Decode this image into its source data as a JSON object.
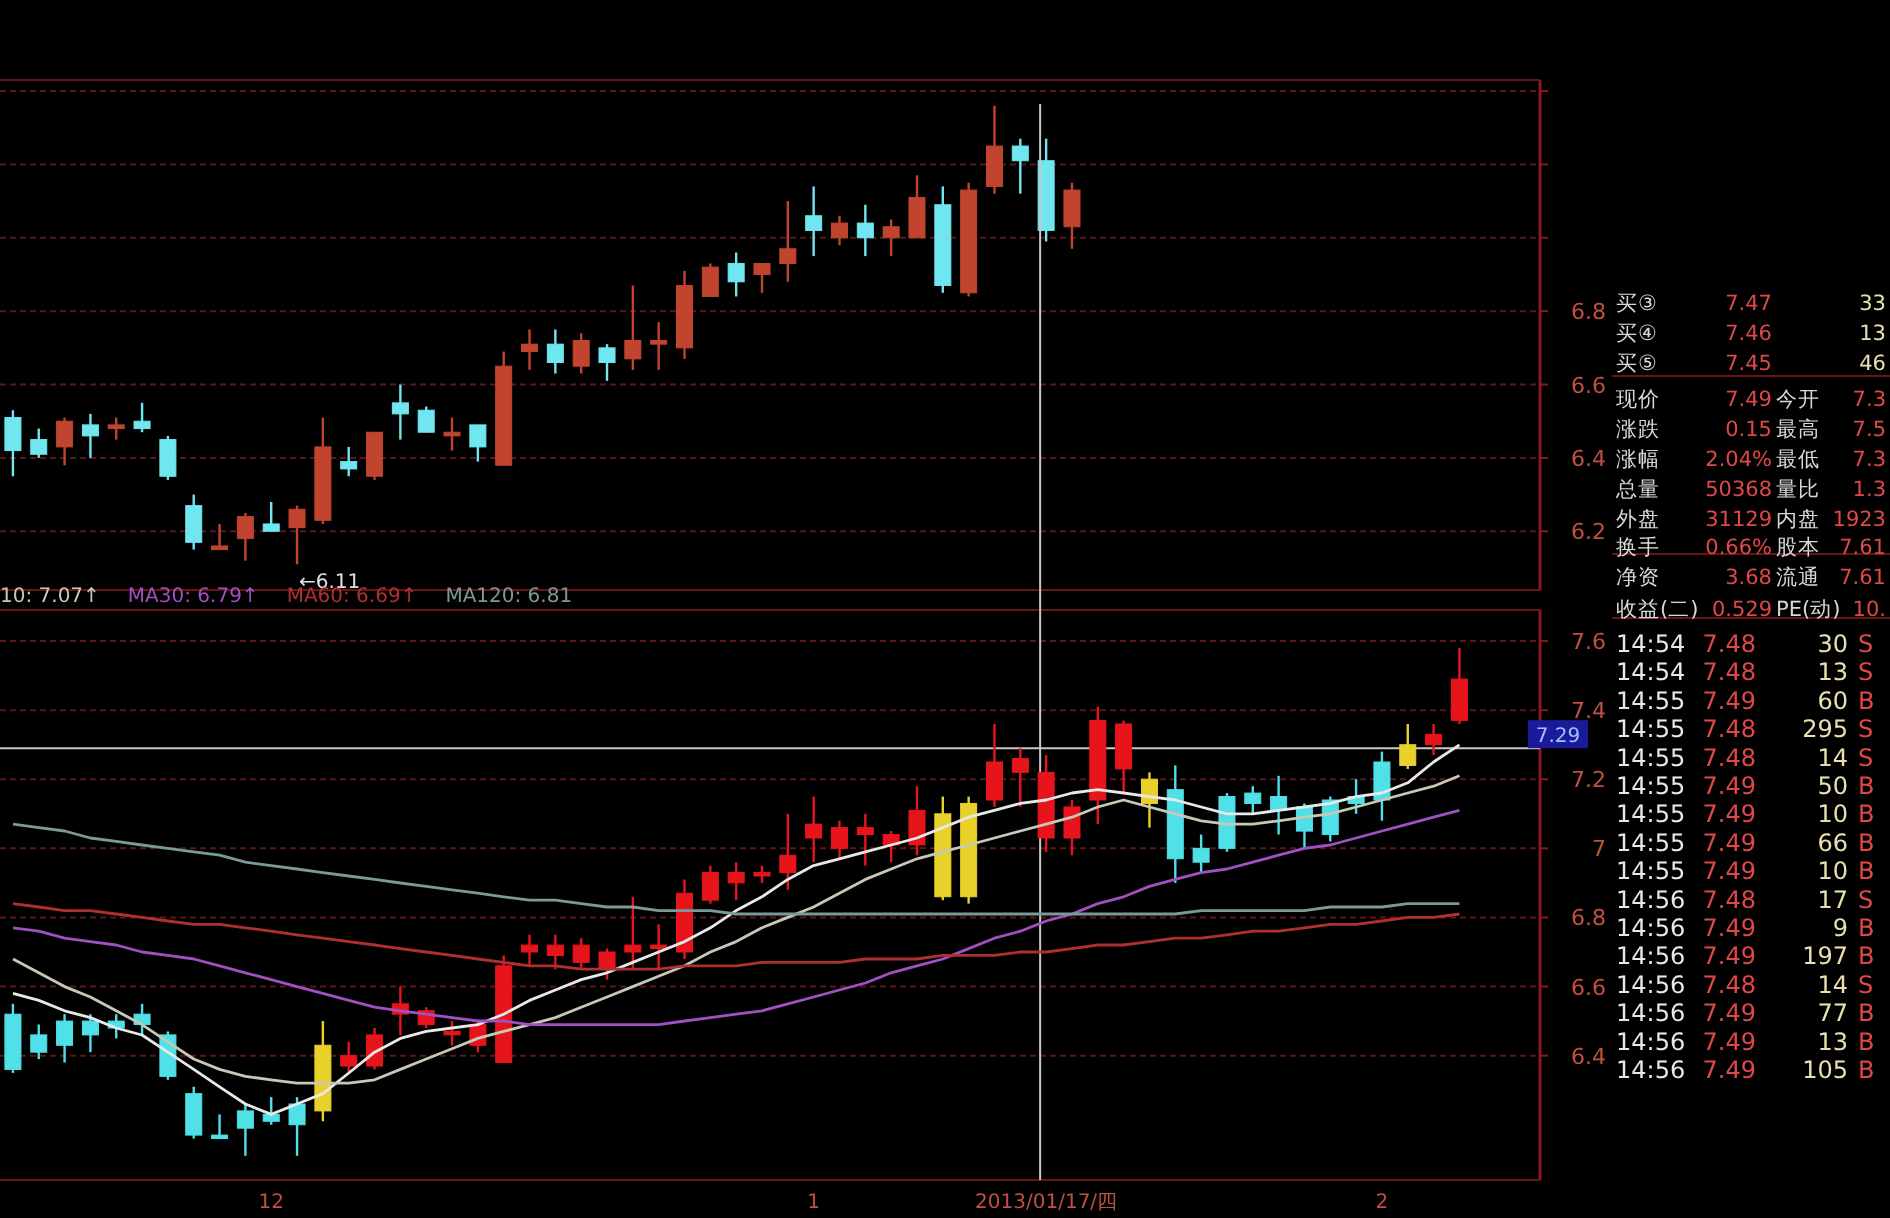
{
  "chart_data": [
    {
      "type": "candlestick",
      "categories": [
        null,
        null,
        null,
        null,
        null,
        null,
        null,
        null,
        null,
        null,
        null,
        null,
        null,
        null,
        null,
        null,
        null,
        null,
        null,
        null,
        null,
        null,
        null,
        null,
        null,
        null,
        null,
        null,
        null,
        null,
        null,
        null,
        null,
        null,
        null,
        null,
        null,
        null,
        null,
        null,
        null,
        null,
        null,
        null,
        null,
        null,
        null,
        null,
        null,
        null,
        null,
        null,
        null,
        null,
        null,
        null,
        null,
        null,
        null
      ],
      "ohlc": [
        [
          6.51,
          6.53,
          6.35,
          6.42
        ],
        [
          6.45,
          6.48,
          6.4,
          6.41
        ],
        [
          6.43,
          6.51,
          6.38,
          6.5
        ],
        [
          6.49,
          6.52,
          6.4,
          6.46
        ],
        [
          6.48,
          6.51,
          6.45,
          6.49
        ],
        [
          6.5,
          6.55,
          6.47,
          6.48
        ],
        [
          6.45,
          6.46,
          6.34,
          6.35
        ],
        [
          6.27,
          6.3,
          6.15,
          6.17
        ],
        [
          6.15,
          6.22,
          6.15,
          6.16
        ],
        [
          6.18,
          6.25,
          6.12,
          6.24
        ],
        [
          6.22,
          6.28,
          6.2,
          6.2
        ],
        [
          6.21,
          6.27,
          6.11,
          6.26
        ],
        [
          6.23,
          6.51,
          6.22,
          6.43
        ],
        [
          6.39,
          6.43,
          6.35,
          6.37
        ],
        [
          6.35,
          6.47,
          6.34,
          6.47
        ],
        [
          6.55,
          6.6,
          6.45,
          6.52
        ],
        [
          6.53,
          6.54,
          6.47,
          6.47
        ],
        [
          6.46,
          6.51,
          6.42,
          6.47
        ],
        [
          6.49,
          6.49,
          6.39,
          6.43
        ],
        [
          6.38,
          6.69,
          6.38,
          6.65
        ],
        [
          6.69,
          6.75,
          6.64,
          6.71
        ],
        [
          6.71,
          6.75,
          6.63,
          6.66
        ],
        [
          6.65,
          6.74,
          6.63,
          6.72
        ],
        [
          6.7,
          6.71,
          6.61,
          6.66
        ],
        [
          6.67,
          6.87,
          6.64,
          6.72
        ],
        [
          6.71,
          6.77,
          6.64,
          6.72
        ],
        [
          6.7,
          6.91,
          6.67,
          6.87
        ],
        [
          6.84,
          6.93,
          6.84,
          6.92
        ],
        [
          6.93,
          6.96,
          6.84,
          6.88
        ],
        [
          6.9,
          6.93,
          6.85,
          6.93
        ],
        [
          6.93,
          7.1,
          6.88,
          6.97
        ],
        [
          7.06,
          7.14,
          6.95,
          7.02
        ],
        [
          7.0,
          7.06,
          6.98,
          7.04
        ],
        [
          7.04,
          7.09,
          6.95,
          7.0
        ],
        [
          7.0,
          7.05,
          6.95,
          7.03
        ],
        [
          7.0,
          7.17,
          7.0,
          7.11
        ],
        [
          7.09,
          7.14,
          6.85,
          6.87
        ],
        [
          6.85,
          7.15,
          6.84,
          7.13
        ],
        [
          7.14,
          7.36,
          7.12,
          7.25
        ],
        [
          7.25,
          7.27,
          7.12,
          7.21
        ],
        [
          7.21,
          7.27,
          6.99,
          7.02
        ],
        [
          7.03,
          7.15,
          6.97,
          7.13
        ],
        null,
        null,
        null,
        null,
        null,
        null,
        null,
        null,
        null,
        null,
        null,
        null,
        null,
        null,
        null,
        null,
        null
      ],
      "colors": [
        "#70e6f0",
        "#70e6f0",
        "#c0442e",
        "#70e6f0",
        "#c0442e",
        "#70e6f0",
        "#70e6f0",
        "#70e6f0",
        "#c0442e",
        "#c0442e",
        "#70e6f0",
        "#c0442e",
        "#c0442e",
        "#70e6f0",
        "#c0442e",
        "#70e6f0",
        "#70e6f0",
        "#c0442e",
        "#70e6f0",
        "#c0442e",
        "#c0442e",
        "#70e6f0",
        "#c0442e",
        "#70e6f0",
        "#c0442e",
        "#c0442e",
        "#c0442e",
        "#c0442e",
        "#70e6f0",
        "#c0442e",
        "#c0442e",
        "#70e6f0",
        "#c0442e",
        "#70e6f0",
        "#c0442e",
        "#c0442e",
        "#70e6f0",
        "#c0442e",
        "#c0442e",
        "#70e6f0",
        "#70e6f0",
        "#c0442e",
        null,
        null,
        null,
        null,
        null,
        null,
        null,
        null,
        null,
        null,
        null,
        null,
        null,
        null,
        null,
        null,
        null
      ],
      "ylim": [
        6.04,
        7.43
      ],
      "yticks": [
        6.2,
        6.4,
        6.6,
        6.8,
        {
          "value": 7.0,
          "label": null
        },
        {
          "value": 7.2,
          "label": null
        },
        {
          "value": 7.4,
          "label": null
        }
      ],
      "grid": "y",
      "tick_labels": "y",
      "annotations": [
        "←6.11"
      ]
    },
    {
      "type": "candlestick",
      "categories": [
        null,
        null,
        null,
        null,
        null,
        null,
        null,
        null,
        null,
        null,
        "12",
        null,
        null,
        null,
        null,
        null,
        null,
        null,
        null,
        null,
        null,
        null,
        null,
        null,
        null,
        null,
        null,
        null,
        null,
        null,
        null,
        "1",
        null,
        null,
        null,
        null,
        null,
        null,
        null,
        null,
        "2013/01/17/四",
        null,
        null,
        null,
        null,
        null,
        null,
        null,
        null,
        null,
        null,
        null,
        null,
        "2",
        null,
        null,
        null,
        null,
        null
      ],
      "ohlc": [
        [
          6.52,
          6.55,
          6.35,
          6.36
        ],
        [
          6.46,
          6.49,
          6.39,
          6.41
        ],
        [
          6.5,
          6.52,
          6.38,
          6.43
        ],
        [
          6.5,
          6.52,
          6.41,
          6.46
        ],
        [
          6.5,
          6.52,
          6.45,
          6.48
        ],
        [
          6.52,
          6.55,
          6.46,
          6.49
        ],
        [
          6.46,
          6.47,
          6.33,
          6.34
        ],
        [
          6.29,
          6.31,
          6.16,
          6.17
        ],
        [
          6.17,
          6.23,
          6.16,
          6.16
        ],
        [
          6.24,
          6.26,
          6.11,
          6.19
        ],
        [
          6.23,
          6.28,
          6.2,
          6.21
        ],
        [
          6.26,
          6.28,
          6.11,
          6.2
        ],
        [
          6.24,
          6.5,
          6.21,
          6.43
        ],
        [
          6.37,
          6.44,
          6.35,
          6.4
        ],
        [
          6.37,
          6.48,
          6.36,
          6.46
        ],
        [
          6.52,
          6.6,
          6.46,
          6.55
        ],
        [
          6.49,
          6.54,
          6.48,
          6.53
        ],
        [
          6.46,
          6.5,
          6.43,
          6.47
        ],
        [
          6.43,
          6.5,
          6.41,
          6.49
        ],
        [
          6.38,
          6.69,
          6.38,
          6.66
        ],
        [
          6.7,
          6.75,
          6.66,
          6.72
        ],
        [
          6.69,
          6.75,
          6.65,
          6.72
        ],
        [
          6.67,
          6.74,
          6.65,
          6.72
        ],
        [
          6.65,
          6.71,
          6.62,
          6.7
        ],
        [
          6.7,
          6.86,
          6.65,
          6.72
        ],
        [
          6.71,
          6.78,
          6.65,
          6.72
        ],
        [
          6.7,
          6.91,
          6.68,
          6.87
        ],
        [
          6.85,
          6.95,
          6.84,
          6.93
        ],
        [
          6.9,
          6.96,
          6.85,
          6.93
        ],
        [
          6.92,
          6.95,
          6.9,
          6.93
        ],
        [
          6.93,
          7.1,
          6.88,
          6.98
        ],
        [
          7.03,
          7.15,
          6.96,
          7.07
        ],
        [
          7.0,
          7.08,
          6.97,
          7.06
        ],
        [
          7.04,
          7.1,
          6.95,
          7.06
        ],
        [
          7.01,
          7.05,
          6.96,
          7.04
        ],
        [
          7.01,
          7.18,
          6.98,
          7.11
        ],
        [
          6.86,
          7.15,
          6.85,
          7.1
        ],
        [
          6.86,
          7.15,
          6.84,
          7.13
        ],
        [
          7.14,
          7.36,
          7.12,
          7.25
        ],
        [
          7.22,
          7.29,
          7.12,
          7.26
        ],
        [
          7.03,
          7.27,
          6.99,
          7.22
        ],
        [
          7.03,
          7.14,
          6.98,
          7.12
        ],
        [
          7.14,
          7.41,
          7.07,
          7.37
        ],
        [
          7.23,
          7.37,
          7.16,
          7.36
        ],
        [
          7.13,
          7.22,
          7.06,
          7.2
        ],
        [
          7.17,
          7.24,
          6.9,
          6.97
        ],
        [
          7.0,
          7.04,
          6.93,
          6.96
        ],
        [
          7.15,
          7.16,
          6.99,
          7.0
        ],
        [
          7.16,
          7.18,
          7.1,
          7.13
        ],
        [
          7.15,
          7.21,
          7.04,
          7.11
        ],
        [
          7.12,
          7.13,
          7.0,
          7.05
        ],
        [
          7.14,
          7.15,
          7.02,
          7.04
        ],
        [
          7.15,
          7.2,
          7.1,
          7.13
        ],
        [
          7.25,
          7.28,
          7.08,
          7.14
        ],
        [
          7.24,
          7.36,
          7.23,
          7.3
        ],
        [
          7.3,
          7.36,
          7.27,
          7.33
        ],
        [
          7.37,
          7.58,
          7.36,
          7.49
        ],
        null,
        null
      ],
      "colors": [
        "#4fe0e8",
        "#4fe0e8",
        "#4fe0e8",
        "#4fe0e8",
        "#4fe0e8",
        "#4fe0e8",
        "#4fe0e8",
        "#4fe0e8",
        "#4fe0e8",
        "#4fe0e8",
        "#4fe0e8",
        "#4fe0e8",
        "#e8d22a",
        "#e8141c",
        "#e8141c",
        "#e8141c",
        "#e8141c",
        "#e8141c",
        "#e8141c",
        "#e8141c",
        "#e8141c",
        "#e8141c",
        "#e8141c",
        "#e8141c",
        "#e8141c",
        "#e8141c",
        "#e8141c",
        "#e8141c",
        "#e8141c",
        "#e8141c",
        "#e8141c",
        "#e8141c",
        "#e8141c",
        "#e8141c",
        "#e8141c",
        "#e8141c",
        "#e8d22a",
        "#e8d22a",
        "#e8141c",
        "#e8141c",
        "#e8141c",
        "#e8141c",
        "#e8141c",
        "#e8141c",
        "#e8d22a",
        "#4fe0e8",
        "#4fe0e8",
        "#4fe0e8",
        "#4fe0e8",
        "#4fe0e8",
        "#4fe0e8",
        "#4fe0e8",
        "#4fe0e8",
        "#4fe0e8",
        "#e8d22a",
        "#e8141c",
        "#e8141c",
        null,
        null
      ],
      "series": [
        {
          "type": "line",
          "color": "#e8e8e8",
          "values": [
            6.58,
            6.56,
            6.53,
            6.51,
            6.48,
            6.46,
            6.41,
            6.36,
            6.31,
            6.26,
            6.23,
            6.26,
            6.29,
            6.35,
            6.41,
            6.45,
            6.47,
            6.48,
            6.49,
            6.52,
            6.56,
            6.59,
            6.62,
            6.64,
            6.67,
            6.7,
            6.73,
            6.77,
            6.82,
            6.86,
            6.91,
            6.95,
            6.97,
            6.99,
            7.01,
            7.03,
            7.06,
            7.09,
            7.11,
            7.13,
            7.14,
            7.16,
            7.17,
            7.16,
            7.15,
            7.14,
            7.12,
            7.1,
            7.1,
            7.11,
            7.12,
            7.13,
            7.15,
            7.16,
            7.19,
            7.25,
            7.3,
            null,
            null
          ]
        },
        {
          "name": "10: 7.07↑",
          "type": "line",
          "color": "#c8c8b8",
          "values": [
            6.68,
            6.64,
            6.6,
            6.57,
            6.53,
            6.49,
            6.44,
            6.39,
            6.36,
            6.34,
            6.33,
            6.32,
            6.32,
            6.32,
            6.33,
            6.36,
            6.39,
            6.42,
            6.45,
            6.47,
            6.49,
            6.51,
            6.54,
            6.57,
            6.6,
            6.63,
            6.66,
            6.7,
            6.73,
            6.77,
            6.8,
            6.83,
            6.87,
            6.91,
            6.94,
            6.97,
            6.99,
            7.01,
            7.03,
            7.05,
            7.07,
            7.09,
            7.12,
            7.14,
            7.12,
            7.1,
            7.08,
            7.07,
            7.07,
            7.08,
            7.09,
            7.1,
            7.12,
            7.14,
            7.16,
            7.18,
            7.21,
            null,
            null
          ]
        },
        {
          "name": "MA30: 6.79↑",
          "type": "line",
          "color": "#a050c0",
          "values": [
            6.77,
            6.76,
            6.74,
            6.73,
            6.72,
            6.7,
            6.69,
            6.68,
            6.66,
            6.64,
            6.62,
            6.6,
            6.58,
            6.56,
            6.54,
            6.53,
            6.52,
            6.51,
            6.5,
            6.5,
            6.49,
            6.49,
            6.49,
            6.49,
            6.49,
            6.49,
            6.5,
            6.51,
            6.52,
            6.53,
            6.55,
            6.57,
            6.59,
            6.61,
            6.64,
            6.66,
            6.68,
            6.71,
            6.74,
            6.76,
            6.79,
            6.81,
            6.84,
            6.86,
            6.89,
            6.91,
            6.93,
            6.94,
            6.96,
            6.98,
            7.0,
            7.01,
            7.03,
            7.05,
            7.07,
            7.09,
            7.11,
            null,
            null
          ]
        },
        {
          "name": "MA60: 6.69↑",
          "type": "line",
          "color": "#b03030",
          "values": [
            6.84,
            6.83,
            6.82,
            6.82,
            6.81,
            6.8,
            6.79,
            6.78,
            6.78,
            6.77,
            6.76,
            6.75,
            6.74,
            6.73,
            6.72,
            6.71,
            6.7,
            6.69,
            6.68,
            6.67,
            6.66,
            6.66,
            6.65,
            6.65,
            6.65,
            6.65,
            6.66,
            6.66,
            6.66,
            6.67,
            6.67,
            6.67,
            6.67,
            6.68,
            6.68,
            6.68,
            6.69,
            6.69,
            6.69,
            6.7,
            6.7,
            6.71,
            6.72,
            6.72,
            6.73,
            6.74,
            6.74,
            6.75,
            6.76,
            6.76,
            6.77,
            6.78,
            6.78,
            6.79,
            6.8,
            6.8,
            6.81,
            null,
            null
          ]
        },
        {
          "name": "MA120: 6.81",
          "type": "line",
          "color": "#7a9a9a",
          "values": [
            7.07,
            7.06,
            7.05,
            7.03,
            7.02,
            7.01,
            7.0,
            6.99,
            6.98,
            6.96,
            6.95,
            6.94,
            6.93,
            6.92,
            6.91,
            6.9,
            6.89,
            6.88,
            6.87,
            6.86,
            6.85,
            6.85,
            6.84,
            6.83,
            6.83,
            6.82,
            6.82,
            6.82,
            6.81,
            6.81,
            6.81,
            6.81,
            6.81,
            6.81,
            6.81,
            6.81,
            6.81,
            6.81,
            6.81,
            6.81,
            6.81,
            6.81,
            6.81,
            6.81,
            6.81,
            6.81,
            6.82,
            6.82,
            6.82,
            6.82,
            6.82,
            6.83,
            6.83,
            6.83,
            6.84,
            6.84,
            6.84,
            null,
            null
          ]
        }
      ],
      "ylim": [
        6.04,
        7.69
      ],
      "yticks": [
        6.4,
        6.6,
        6.8,
        7.0,
        7.2,
        7.4,
        7.6
      ],
      "grid": "y",
      "legend": "top left",
      "ref_lines": [
        {
          "axis": "x",
          "value": "2013/01/17/四",
          "color": "#c8c8c8"
        },
        {
          "axis": "y",
          "value": 7.29,
          "label": "7.29",
          "color": "#c8c8c8"
        }
      ]
    },
    {
      "type": "other",
      "annotations": [
        "买③",
        "7.47",
        "33",
        "买④",
        "7.46",
        "13",
        "买⑤",
        "7.45",
        "46",
        "现价",
        "7.49",
        "今开",
        "7.3",
        "涨跌",
        "0.15",
        "最高",
        "7.5",
        "涨幅",
        "2.04%",
        "最低",
        "7.3",
        "总量",
        "50368",
        "量比",
        "1.3",
        "外盘",
        "31129",
        "内盘",
        "1923",
        "换手",
        "0.66%",
        "股本",
        "7.61",
        "净资",
        "3.68",
        "流通",
        "7.61",
        "收益(二)",
        "0.529",
        "PE(动)",
        "10.",
        "14:54",
        "7.48",
        "30",
        "S",
        "14:54",
        "7.48",
        "13",
        "S",
        "14:55",
        "7.49",
        "60",
        "B",
        "14:55",
        "7.48",
        "295",
        "S",
        "14:55",
        "7.48",
        "14",
        "S",
        "14:55",
        "7.49",
        "50",
        "B",
        "14:55",
        "7.49",
        "10",
        "B",
        "14:55",
        "7.49",
        "66",
        "B",
        "14:55",
        "7.49",
        "10",
        "B",
        "14:56",
        "7.48",
        "17",
        "S",
        "14:56",
        "7.49",
        "9",
        "B",
        "14:56",
        "7.49",
        "197",
        "B",
        "14:56",
        "7.48",
        "14",
        "S",
        "14:56",
        "7.49",
        "77",
        "B",
        "14:56",
        "7.49",
        "13",
        "B",
        "14:56",
        "7.49",
        "105",
        "B"
      ]
    }
  ]
}
